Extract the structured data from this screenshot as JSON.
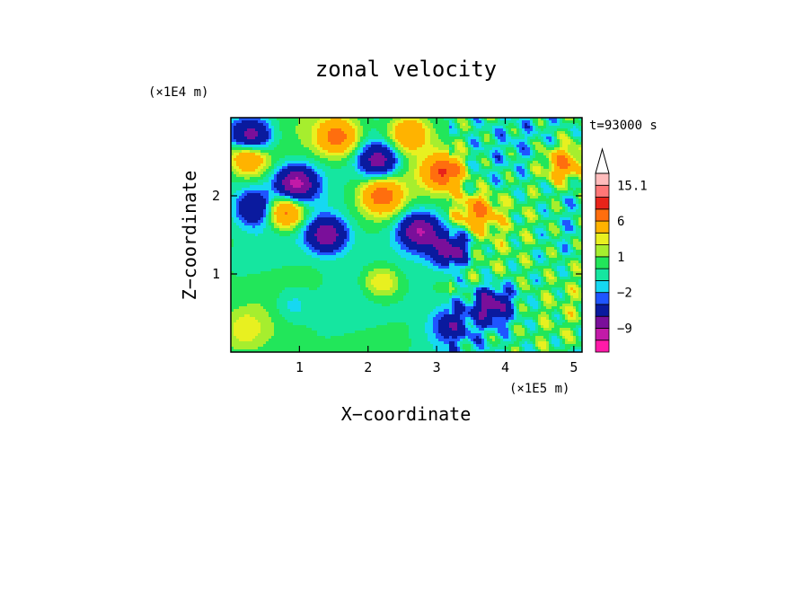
{
  "chart_data": {
    "type": "heatmap",
    "subtype": "filled contour",
    "title": "zonal velocity",
    "time_label": "t=93000 s",
    "xlabel": "X−coordinate",
    "ylabel": "Z−coordinate",
    "x_unit": "(×1E5 m)",
    "y_unit": "(×1E4 m)",
    "xlim": [
      0,
      5.12
    ],
    "ylim": [
      0,
      3.0
    ],
    "x_ticks": [
      {
        "value": 1,
        "label": "1"
      },
      {
        "value": 2,
        "label": "2"
      },
      {
        "value": 3,
        "label": "3"
      },
      {
        "value": 4,
        "label": "4"
      },
      {
        "value": 5,
        "label": "5"
      }
    ],
    "y_ticks": [
      {
        "value": 1,
        "label": "1"
      },
      {
        "value": 2,
        "label": "2"
      }
    ],
    "colorbar": {
      "extend": "max",
      "levels": [
        -15,
        -12,
        -9,
        -6,
        -3,
        -2,
        -1,
        0,
        1,
        2,
        3,
        6,
        9,
        12,
        15.1
      ],
      "colors": [
        "#ff1aa8",
        "#c21aa8",
        "#7a0f9a",
        "#0a1a9e",
        "#1f55ff",
        "#16d8f2",
        "#15e6a0",
        "#22e65a",
        "#a6ee2e",
        "#e8f020",
        "#ffb300",
        "#ff6e0e",
        "#e8241a",
        "#ff7777",
        "#ffbcbc"
      ],
      "extend_color": "#ffffff",
      "tick_labels": [
        {
          "value": 15.1,
          "label": "15.1"
        },
        {
          "value": 6,
          "label": "6"
        },
        {
          "value": 1,
          "label": "1"
        },
        {
          "value": -2,
          "label": "−2"
        },
        {
          "value": -9,
          "label": "−9"
        }
      ]
    },
    "field_features": [
      {
        "x": 0.3,
        "z": 2.75,
        "u": -8
      },
      {
        "x": 0.95,
        "z": 2.15,
        "u": -10
      },
      {
        "x": 1.55,
        "z": 2.75,
        "u": 7
      },
      {
        "x": 2.15,
        "z": 2.45,
        "u": -8
      },
      {
        "x": 2.2,
        "z": 2.0,
        "u": 7
      },
      {
        "x": 1.4,
        "z": 1.5,
        "u": -8
      },
      {
        "x": 0.35,
        "z": 1.85,
        "u": -6
      },
      {
        "x": 0.8,
        "z": 1.8,
        "u": 8
      },
      {
        "x": 0.25,
        "z": 2.5,
        "u": 7
      },
      {
        "x": 2.75,
        "z": 1.55,
        "u": -9
      },
      {
        "x": 2.6,
        "z": 2.8,
        "u": 6
      },
      {
        "x": 3.1,
        "z": 2.3,
        "u": 9
      },
      {
        "x": 3.6,
        "z": 1.8,
        "u": 6
      },
      {
        "x": 3.2,
        "z": 1.3,
        "u": -8
      },
      {
        "x": 4.85,
        "z": 2.4,
        "u": 6
      },
      {
        "x": 2.2,
        "z": 0.9,
        "u": 4
      },
      {
        "x": 0.9,
        "z": 0.6,
        "u": -2
      },
      {
        "x": 0.2,
        "z": 0.3,
        "u": 2
      },
      {
        "x": 3.2,
        "z": 0.35,
        "u": -4
      },
      {
        "x": 3.8,
        "z": 0.6,
        "u": -7
      }
    ]
  }
}
